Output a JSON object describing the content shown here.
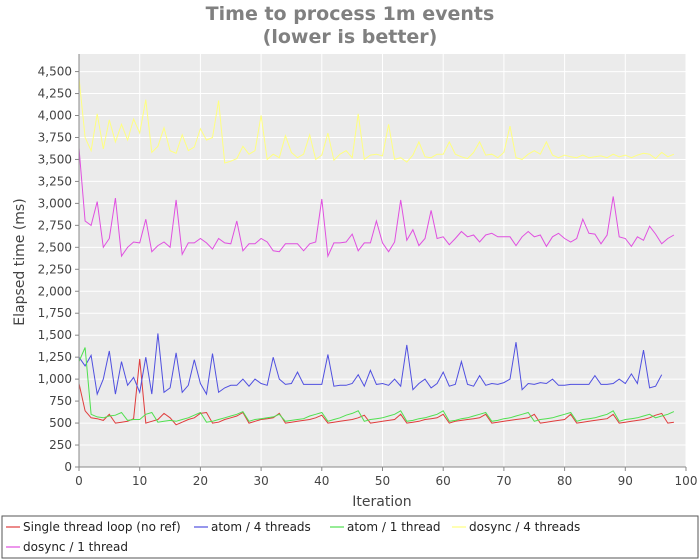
{
  "chart_data": {
    "type": "line",
    "title": "Time to process 1m events",
    "subtitle": "(lower is better)",
    "xlabel": "Iteration",
    "ylabel": "Elapsed time (ms)",
    "xlim": [
      0,
      100
    ],
    "ylim": [
      0,
      4700
    ],
    "x_ticks": [
      0,
      10,
      20,
      30,
      40,
      50,
      60,
      70,
      80,
      90,
      100
    ],
    "y_ticks": [
      0,
      250,
      500,
      750,
      1000,
      1250,
      1500,
      1750,
      2000,
      2250,
      2500,
      2750,
      3000,
      3250,
      3500,
      3750,
      4000,
      4250,
      4500
    ],
    "y_tick_labels": [
      "0",
      "250",
      "500",
      "750",
      "1,000",
      "1,250",
      "1,500",
      "1,750",
      "2,000",
      "2,250",
      "2,500",
      "2,750",
      "3,000",
      "3,250",
      "3,500",
      "3,750",
      "4,000",
      "4,250",
      "4,500"
    ],
    "grid": true,
    "background": "#ebebeb",
    "legend_position": "bottom",
    "series": [
      {
        "name": "Single thread loop (no ref)",
        "color": "#e03c3c",
        "x": [
          0,
          1,
          2,
          3,
          4,
          5,
          6,
          7,
          8,
          9,
          10,
          11,
          12,
          13,
          14,
          15,
          16,
          17,
          18,
          19,
          20,
          21,
          22,
          23,
          24,
          25,
          26,
          27,
          28,
          29,
          30,
          31,
          32,
          33,
          34,
          35,
          36,
          37,
          38,
          39,
          40,
          41,
          42,
          43,
          44,
          45,
          46,
          47,
          48,
          49,
          50,
          51,
          52,
          53,
          54,
          55,
          56,
          57,
          58,
          59,
          60,
          61,
          62,
          63,
          64,
          65,
          66,
          67,
          68,
          69,
          70,
          71,
          72,
          73,
          74,
          75,
          76,
          77,
          78,
          79,
          80,
          81,
          82,
          83,
          84,
          85,
          86,
          87,
          88,
          89,
          90,
          91,
          92,
          93,
          94,
          95,
          96,
          97,
          98
        ],
        "values": [
          950,
          640,
          560,
          550,
          530,
          600,
          500,
          510,
          520,
          550,
          1230,
          500,
          520,
          540,
          610,
          560,
          480,
          510,
          540,
          560,
          610,
          620,
          500,
          510,
          540,
          560,
          580,
          620,
          500,
          520,
          540,
          550,
          560,
          610,
          500,
          510,
          520,
          530,
          540,
          560,
          590,
          500,
          510,
          520,
          530,
          540,
          560,
          590,
          500,
          510,
          520,
          530,
          540,
          600,
          500,
          510,
          520,
          540,
          550,
          560,
          600,
          500,
          520,
          530,
          540,
          550,
          560,
          600,
          500,
          510,
          520,
          530,
          540,
          550,
          560,
          600,
          500,
          510,
          520,
          530,
          540,
          600,
          500,
          510,
          520,
          530,
          540,
          550,
          600,
          500,
          510,
          520,
          530,
          540,
          560,
          590,
          610,
          500,
          510
        ]
      },
      {
        "name": "atom / 4 threads",
        "color": "#5050e0",
        "x": [
          0,
          1,
          2,
          3,
          4,
          5,
          6,
          7,
          8,
          9,
          10,
          11,
          12,
          13,
          14,
          15,
          16,
          17,
          18,
          19,
          20,
          21,
          22,
          23,
          24,
          25,
          26,
          27,
          28,
          29,
          30,
          31,
          32,
          33,
          34,
          35,
          36,
          37,
          38,
          39,
          40,
          41,
          42,
          43,
          44,
          45,
          46,
          47,
          48,
          49,
          50,
          51,
          52,
          53,
          54,
          55,
          56,
          57,
          58,
          59,
          60,
          61,
          62,
          63,
          64,
          65,
          66,
          67,
          68,
          69,
          70,
          71,
          72,
          73,
          74,
          75,
          76,
          77,
          78,
          79,
          80,
          81,
          82,
          83,
          84,
          85,
          86,
          87,
          88,
          89,
          90,
          91,
          92,
          93,
          94,
          95,
          96
        ],
        "values": [
          1250,
          1150,
          1270,
          830,
          1000,
          1320,
          830,
          1200,
          930,
          1020,
          850,
          1250,
          830,
          1520,
          850,
          900,
          1300,
          850,
          930,
          1220,
          950,
          830,
          1290,
          850,
          900,
          930,
          930,
          1000,
          920,
          1000,
          950,
          930,
          1250,
          1000,
          940,
          950,
          1080,
          940,
          940,
          940,
          940,
          1280,
          920,
          930,
          930,
          950,
          1050,
          920,
          1100,
          940,
          950,
          930,
          1000,
          920,
          1390,
          880,
          950,
          1000,
          900,
          950,
          1080,
          920,
          940,
          1200,
          940,
          920,
          1040,
          930,
          950,
          940,
          960,
          1000,
          1420,
          880,
          950,
          940,
          960,
          950,
          1000,
          930,
          930,
          940,
          940,
          940,
          940,
          1040,
          940,
          940,
          950,
          1000,
          950,
          1060,
          950,
          1330,
          900,
          920,
          1050
        ]
      },
      {
        "name": "atom / 1 thread",
        "color": "#50e050",
        "x": [
          0,
          1,
          2,
          3,
          4,
          5,
          6,
          7,
          8,
          9,
          10,
          11,
          12,
          13,
          14,
          15,
          16,
          17,
          18,
          19,
          20,
          21,
          22,
          23,
          24,
          25,
          26,
          27,
          28,
          29,
          30,
          31,
          32,
          33,
          34,
          35,
          36,
          37,
          38,
          39,
          40,
          41,
          42,
          43,
          44,
          45,
          46,
          47,
          48,
          49,
          50,
          51,
          52,
          53,
          54,
          55,
          56,
          57,
          58,
          59,
          60,
          61,
          62,
          63,
          64,
          65,
          66,
          67,
          68,
          69,
          70,
          71,
          72,
          73,
          74,
          75,
          76,
          77,
          78,
          79,
          80,
          81,
          82,
          83,
          84,
          85,
          86,
          87,
          88,
          89,
          90,
          91,
          92,
          93,
          94,
          95,
          96,
          97,
          98
        ],
        "values": [
          1200,
          1360,
          600,
          570,
          560,
          580,
          590,
          620,
          530,
          540,
          540,
          600,
          620,
          510,
          520,
          530,
          520,
          540,
          560,
          590,
          620,
          510,
          520,
          540,
          560,
          580,
          600,
          630,
          520,
          540,
          550,
          560,
          570,
          600,
          520,
          530,
          540,
          550,
          580,
          600,
          620,
          520,
          540,
          560,
          590,
          610,
          640,
          520,
          540,
          550,
          560,
          580,
          600,
          640,
          520,
          530,
          550,
          560,
          580,
          600,
          640,
          520,
          530,
          550,
          560,
          580,
          600,
          620,
          520,
          530,
          550,
          560,
          580,
          600,
          620,
          520,
          540,
          550,
          560,
          580,
          600,
          620,
          520,
          540,
          550,
          560,
          580,
          600,
          640,
          520,
          540,
          550,
          560,
          580,
          600,
          560,
          580,
          600,
          630
        ]
      },
      {
        "name": "dosync / 4 threads",
        "color": "#ffff80",
        "x": [
          0,
          1,
          2,
          3,
          4,
          5,
          6,
          7,
          8,
          9,
          10,
          11,
          12,
          13,
          14,
          15,
          16,
          17,
          18,
          19,
          20,
          21,
          22,
          23,
          24,
          25,
          26,
          27,
          28,
          29,
          30,
          31,
          32,
          33,
          34,
          35,
          36,
          37,
          38,
          39,
          40,
          41,
          42,
          43,
          44,
          45,
          46,
          47,
          48,
          49,
          50,
          51,
          52,
          53,
          54,
          55,
          56,
          57,
          58,
          59,
          60,
          61,
          62,
          63,
          64,
          65,
          66,
          67,
          68,
          69,
          70,
          71,
          72,
          73,
          74,
          75,
          76,
          77,
          78,
          79,
          80,
          81,
          82,
          83,
          84,
          85,
          86,
          87,
          88,
          89,
          90,
          91,
          92,
          93,
          94,
          95,
          96,
          97,
          98
        ],
        "values": [
          4430,
          3750,
          3600,
          4020,
          3620,
          3950,
          3700,
          3900,
          3720,
          3960,
          3800,
          4180,
          3580,
          3650,
          3860,
          3600,
          3570,
          3780,
          3600,
          3640,
          3850,
          3720,
          3750,
          4170,
          3460,
          3480,
          3510,
          3650,
          3560,
          3600,
          4000,
          3500,
          3560,
          3520,
          3770,
          3580,
          3520,
          3560,
          3780,
          3500,
          3550,
          3800,
          3490,
          3560,
          3600,
          3520,
          4020,
          3500,
          3550,
          3560,
          3540,
          3900,
          3500,
          3520,
          3470,
          3550,
          3700,
          3530,
          3520,
          3560,
          3560,
          3700,
          3560,
          3530,
          3510,
          3580,
          3700,
          3550,
          3560,
          3520,
          3580,
          3880,
          3520,
          3500,
          3560,
          3600,
          3560,
          3700,
          3550,
          3520,
          3550,
          3530,
          3520,
          3550,
          3520,
          3530,
          3540,
          3520,
          3560,
          3530,
          3550,
          3520,
          3550,
          3570,
          3560,
          3510,
          3580,
          3530,
          3560
        ]
      },
      {
        "name": "dosync / 1 thread",
        "color": "#e050e0",
        "x": [
          0,
          1,
          2,
          3,
          4,
          5,
          6,
          7,
          8,
          9,
          10,
          11,
          12,
          13,
          14,
          15,
          16,
          17,
          18,
          19,
          20,
          21,
          22,
          23,
          24,
          25,
          26,
          27,
          28,
          29,
          30,
          31,
          32,
          33,
          34,
          35,
          36,
          37,
          38,
          39,
          40,
          41,
          42,
          43,
          44,
          45,
          46,
          47,
          48,
          49,
          50,
          51,
          52,
          53,
          54,
          55,
          56,
          57,
          58,
          59,
          60,
          61,
          62,
          63,
          64,
          65,
          66,
          67,
          68,
          69,
          70,
          71,
          72,
          73,
          74,
          75,
          76,
          77,
          78,
          79,
          80,
          81,
          82,
          83,
          84,
          85,
          86,
          87,
          88,
          89,
          90,
          91,
          92,
          93,
          94,
          95,
          96,
          97,
          98
        ],
        "values": [
          3630,
          2800,
          2750,
          3020,
          2500,
          2600,
          3060,
          2400,
          2500,
          2560,
          2550,
          2820,
          2450,
          2520,
          2560,
          2500,
          3040,
          2420,
          2550,
          2550,
          2600,
          2550,
          2480,
          2600,
          2550,
          2540,
          2800,
          2460,
          2540,
          2540,
          2600,
          2560,
          2460,
          2450,
          2540,
          2540,
          2540,
          2460,
          2540,
          2560,
          3050,
          2400,
          2550,
          2550,
          2560,
          2650,
          2460,
          2550,
          2550,
          2800,
          2550,
          2450,
          2560,
          3040,
          2580,
          2700,
          2520,
          2600,
          2920,
          2600,
          2620,
          2530,
          2600,
          2680,
          2620,
          2640,
          2560,
          2640,
          2660,
          2620,
          2620,
          2620,
          2520,
          2620,
          2680,
          2620,
          2640,
          2510,
          2620,
          2660,
          2600,
          2560,
          2600,
          2820,
          2660,
          2650,
          2540,
          2640,
          3080,
          2620,
          2600,
          2510,
          2620,
          2580,
          2740,
          2650,
          2540,
          2600,
          2640
        ]
      }
    ]
  }
}
